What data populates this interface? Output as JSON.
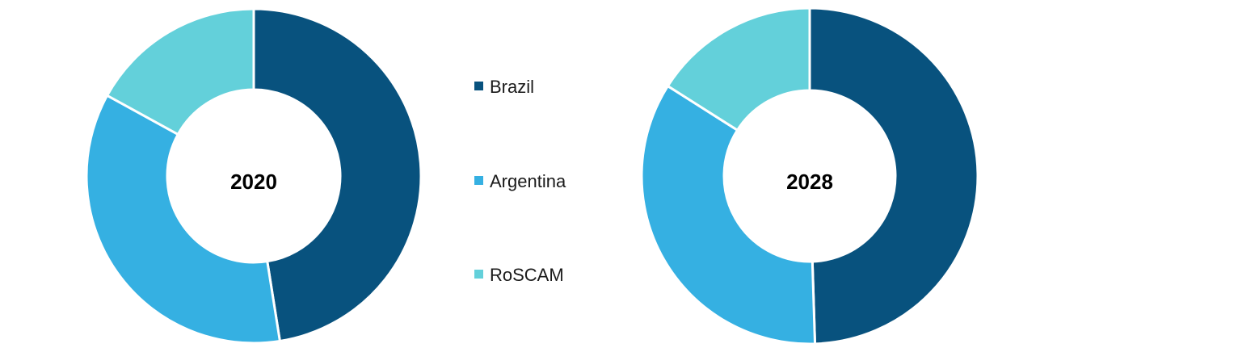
{
  "chart_data": {
    "type": "donut",
    "series_names": [
      "Brazil",
      "Argentina",
      "RoSCAM"
    ],
    "colors": [
      "#08527E",
      "#35B0E2",
      "#63D0DA"
    ],
    "charts": [
      {
        "label": "2020",
        "values": [
          47.5,
          35.5,
          17.0
        ]
      },
      {
        "label": "2028",
        "values": [
          49.5,
          34.5,
          16.0
        ]
      }
    ],
    "legend": {
      "placement": "between-charts",
      "entries": [
        "Brazil",
        "Argentina",
        "RoSCAM"
      ]
    }
  }
}
